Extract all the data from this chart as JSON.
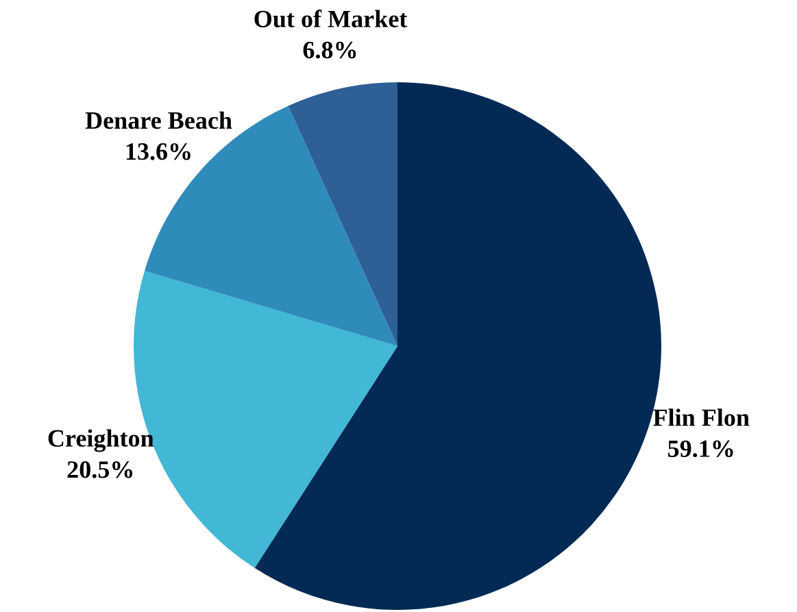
{
  "chart_data": {
    "type": "pie",
    "categories": [
      "Flin Flon",
      "Creighton",
      "Denare Beach",
      "Out of Market"
    ],
    "values": [
      59.1,
      20.5,
      13.6,
      6.8
    ],
    "colors": [
      "#022a54",
      "#42b7d6",
      "#2e8bba",
      "#2e5f97"
    ],
    "value_labels": [
      "59.1%",
      "20.5%",
      "13.6%",
      "6.8%"
    ]
  }
}
